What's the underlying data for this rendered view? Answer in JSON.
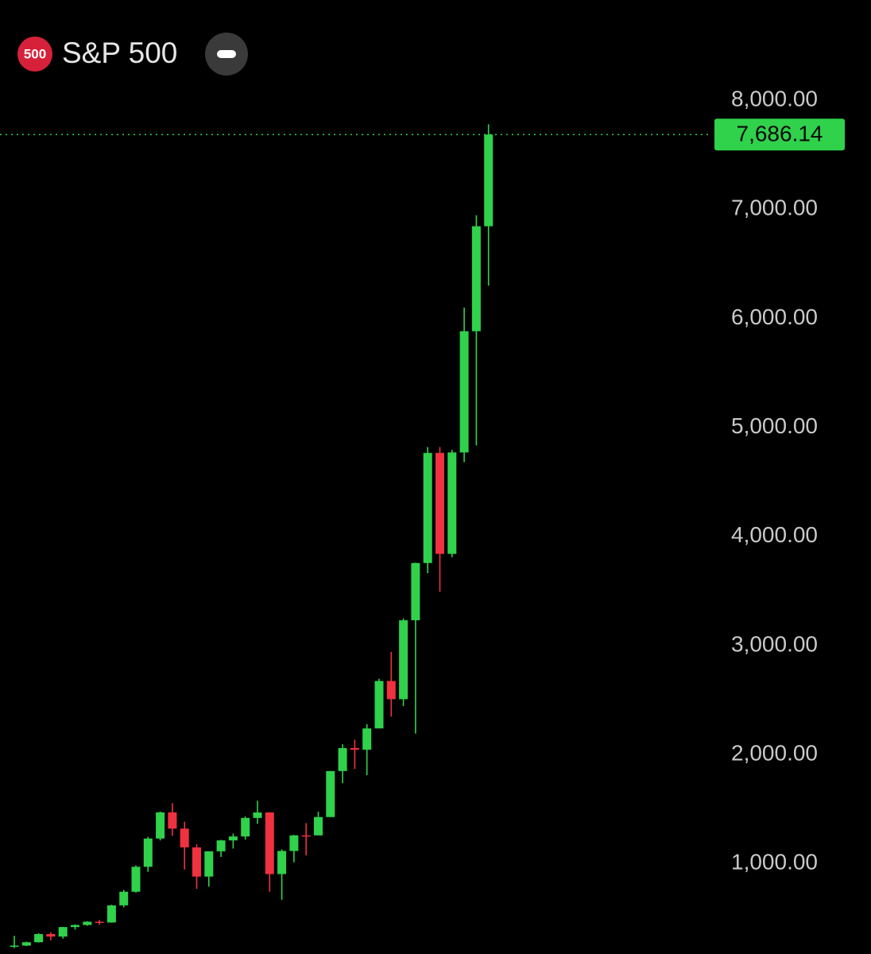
{
  "chart_data": {
    "type": "candlestick",
    "symbol_badge": "500",
    "title": "S&P 500",
    "series": [
      {
        "open": [
          242,
          247,
          278,
          353,
          330,
          417,
          436,
          466,
          459,
          616,
          741,
          970,
          1229,
          1469,
          1320,
          1148,
          880,
          1112,
          1212,
          1248,
          1418,
          1468,
          903,
          1115,
          1258,
          1258,
          1426,
          1848,
          2059,
          2044,
          2239,
          2674,
          2507,
          3231,
          3756,
          4766,
          3840,
          4770,
          5882,
          6845
        ],
        "high": [
          337,
          283,
          360,
          369,
          418,
          442,
          471,
          482,
          622,
          758,
          983,
          1244,
          1477,
          1553,
          1383,
          1176,
          1112,
          1217,
          1275,
          1431,
          1576,
          1471,
          1130,
          1263,
          1371,
          1475,
          1849,
          2094,
          2135,
          2278,
          2695,
          2941,
          3248,
          3760,
          4819,
          4819,
          4794,
          6099,
          6946,
          7780
        ],
        "low": [
          224,
          243,
          275,
          295,
          311,
          394,
          429,
          438,
          457,
          598,
          733,
          923,
          1212,
          1254,
          945,
          768,
          788,
          1060,
          1137,
          1219,
          1364,
          741,
          667,
          1011,
          1075,
          1259,
          1426,
          1737,
          1867,
          1810,
          2245,
          2347,
          2444,
          2192,
          3663,
          3492,
          3809,
          4682,
          4835,
          6300
        ],
        "close": [
          247,
          278,
          353,
          330,
          417,
          436,
          466,
          459,
          616,
          741,
          970,
          1229,
          1469,
          1320,
          1148,
          880,
          1112,
          1212,
          1248,
          1418,
          1468,
          903,
          1115,
          1258,
          1257,
          1426,
          1848,
          2059,
          2044,
          2239,
          2674,
          2507,
          3231,
          3756,
          4766,
          3840,
          4770,
          5882,
          6845,
          7686.14
        ]
      }
    ],
    "up_color": "#30d14b",
    "down_color": "#f0313f",
    "ylim": [
      170,
      8920
    ],
    "yticks": [
      {
        "value": 1000,
        "label": "1,000.00"
      },
      {
        "value": 2000,
        "label": "2,000.00"
      },
      {
        "value": 3000,
        "label": "3,000.00"
      },
      {
        "value": 4000,
        "label": "4,000.00"
      },
      {
        "value": 5000,
        "label": "5,000.00"
      },
      {
        "value": 6000,
        "label": "6,000.00"
      },
      {
        "value": 7000,
        "label": "7,000.00"
      },
      {
        "value": 8000,
        "label": "8,000.00"
      }
    ],
    "last_price": {
      "value": 7686.14,
      "label": "7,686.14"
    }
  }
}
